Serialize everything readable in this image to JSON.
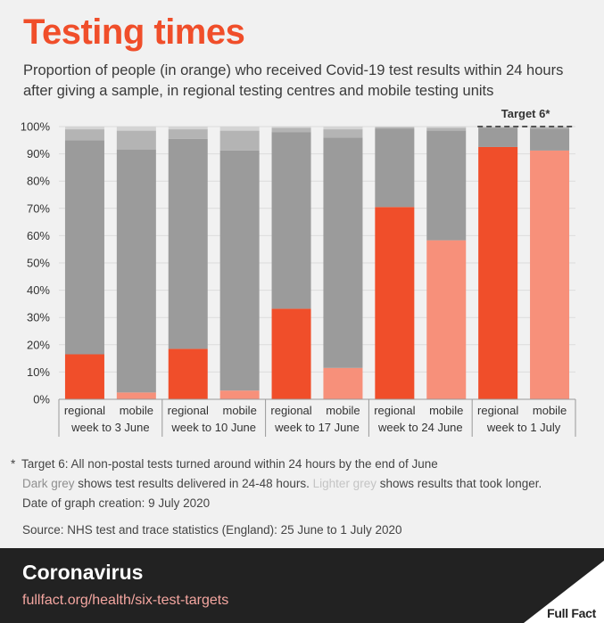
{
  "header": {
    "title": "Testing times",
    "subtitle": "Proportion of people (in orange) who received Covid-19 test results within 24 hours after giving a sample, in regional testing centres and mobile testing units"
  },
  "colors": {
    "regional": "#f04e2a",
    "mobile": "#f7907a",
    "dark_grey": "#9b9b9b",
    "light_grey": "#b4b4b4",
    "lightest_grey": "#d4d4d4",
    "background": "#f1f1f1"
  },
  "chart_data": {
    "type": "bar",
    "stacked": true,
    "ylim": [
      0,
      100
    ],
    "yticks": [
      0,
      10,
      20,
      30,
      40,
      50,
      60,
      70,
      80,
      90,
      100
    ],
    "ytick_suffix": "%",
    "grid": true,
    "target_label": "Target 6*",
    "target_value": 100,
    "target_groups": [
      4
    ],
    "groups": [
      {
        "label": "week to 3 June",
        "bars": [
          {
            "label": "regional",
            "within_24h": 16.5,
            "hours_24_48": 78.5,
            "longer": 4.0
          },
          {
            "label": "mobile",
            "within_24h": 2.5,
            "hours_24_48": 89.0,
            "longer": 7.0
          }
        ]
      },
      {
        "label": "week to 10 June",
        "bars": [
          {
            "label": "regional",
            "within_24h": 18.5,
            "hours_24_48": 77.0,
            "longer": 3.5
          },
          {
            "label": "mobile",
            "within_24h": 3.2,
            "hours_24_48": 88.0,
            "longer": 7.3
          }
        ]
      },
      {
        "label": "week to 17 June",
        "bars": [
          {
            "label": "regional",
            "within_24h": 33.2,
            "hours_24_48": 64.8,
            "longer": 1.5
          },
          {
            "label": "mobile",
            "within_24h": 11.5,
            "hours_24_48": 84.5,
            "longer": 3.0
          }
        ]
      },
      {
        "label": "week to 24 June",
        "bars": [
          {
            "label": "regional",
            "within_24h": 70.5,
            "hours_24_48": 28.8,
            "longer": 0.5
          },
          {
            "label": "mobile",
            "within_24h": 58.3,
            "hours_24_48": 40.2,
            "longer": 1.0
          }
        ]
      },
      {
        "label": "week to 1 July",
        "bars": [
          {
            "label": "regional",
            "within_24h": 92.5,
            "hours_24_48": 7.0,
            "longer": 0.3
          },
          {
            "label": "mobile",
            "within_24h": 91.2,
            "hours_24_48": 8.0,
            "longer": 0.5
          }
        ]
      }
    ]
  },
  "notes": {
    "star": "*",
    "target": "Target 6: All non-postal tests turned around within 24 hours by the end of June",
    "dark_grey": "Dark grey",
    "dark_grey_text": " shows test results delivered in 24-48 hours. ",
    "lighter_grey": "Lighter grey",
    "lighter_grey_text": " shows results that took longer.",
    "created": "Date of graph creation: 9 July 2020",
    "source": "Source: NHS test and trace statistics (England): 25 June to 1 July 2020"
  },
  "footer": {
    "title": "Coronavirus",
    "link": "fullfact.org/health/six-test-targets",
    "logo": "Full Fact"
  }
}
